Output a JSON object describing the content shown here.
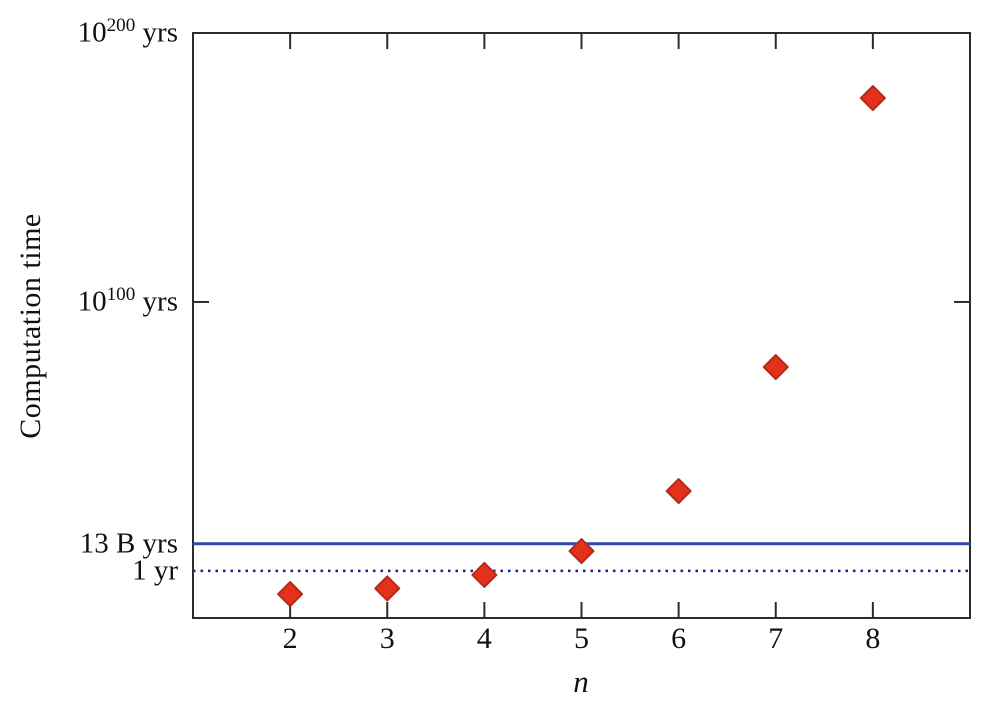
{
  "figure": {
    "background": "#ffffff",
    "axis_color": "#2b2b2b",
    "text_color": "#111111"
  },
  "chart_data": {
    "type": "scatter",
    "title": "",
    "xlabel": "n",
    "ylabel": "Computation time",
    "x_range": [
      1,
      9
    ],
    "x_ticks": [
      2,
      3,
      4,
      5,
      6,
      7,
      8
    ],
    "y_axis_unit": "log10 of years",
    "y_range_log10_years": [
      -17.5,
      200
    ],
    "grid": false,
    "legend": false,
    "y_tick_labels": [
      {
        "base": "10",
        "exp": "200",
        "suffix": "yrs",
        "log10_years": 200
      },
      {
        "base": "10",
        "exp": "100",
        "suffix": "yrs",
        "log10_years": 100
      },
      {
        "text": "13 B yrs",
        "log10_years": 10.11
      },
      {
        "text": "1 yr",
        "log10_years": 0
      }
    ],
    "reference_lines": [
      {
        "name": "13-b-yrs-line",
        "log10_years": 10.11,
        "style": "solid",
        "color": "#3247b5"
      },
      {
        "name": "1-yr-line",
        "log10_years": 0,
        "style": "dotted",
        "color": "#1e1e8c"
      }
    ],
    "series": [
      {
        "name": "computation-time",
        "marker": "diamond",
        "marker_fill": "#e5301c",
        "marker_stroke": "#b22a18",
        "points": [
          {
            "n": 2,
            "log10_years": -8.6
          },
          {
            "n": 3,
            "log10_years": -6.5
          },
          {
            "n": 4,
            "log10_years": -1.5
          },
          {
            "n": 5,
            "log10_years": 7.4
          },
          {
            "n": 6,
            "log10_years": 29.7
          },
          {
            "n": 7,
            "log10_years": 75.8
          },
          {
            "n": 8,
            "log10_years": 175.8
          }
        ]
      }
    ]
  }
}
